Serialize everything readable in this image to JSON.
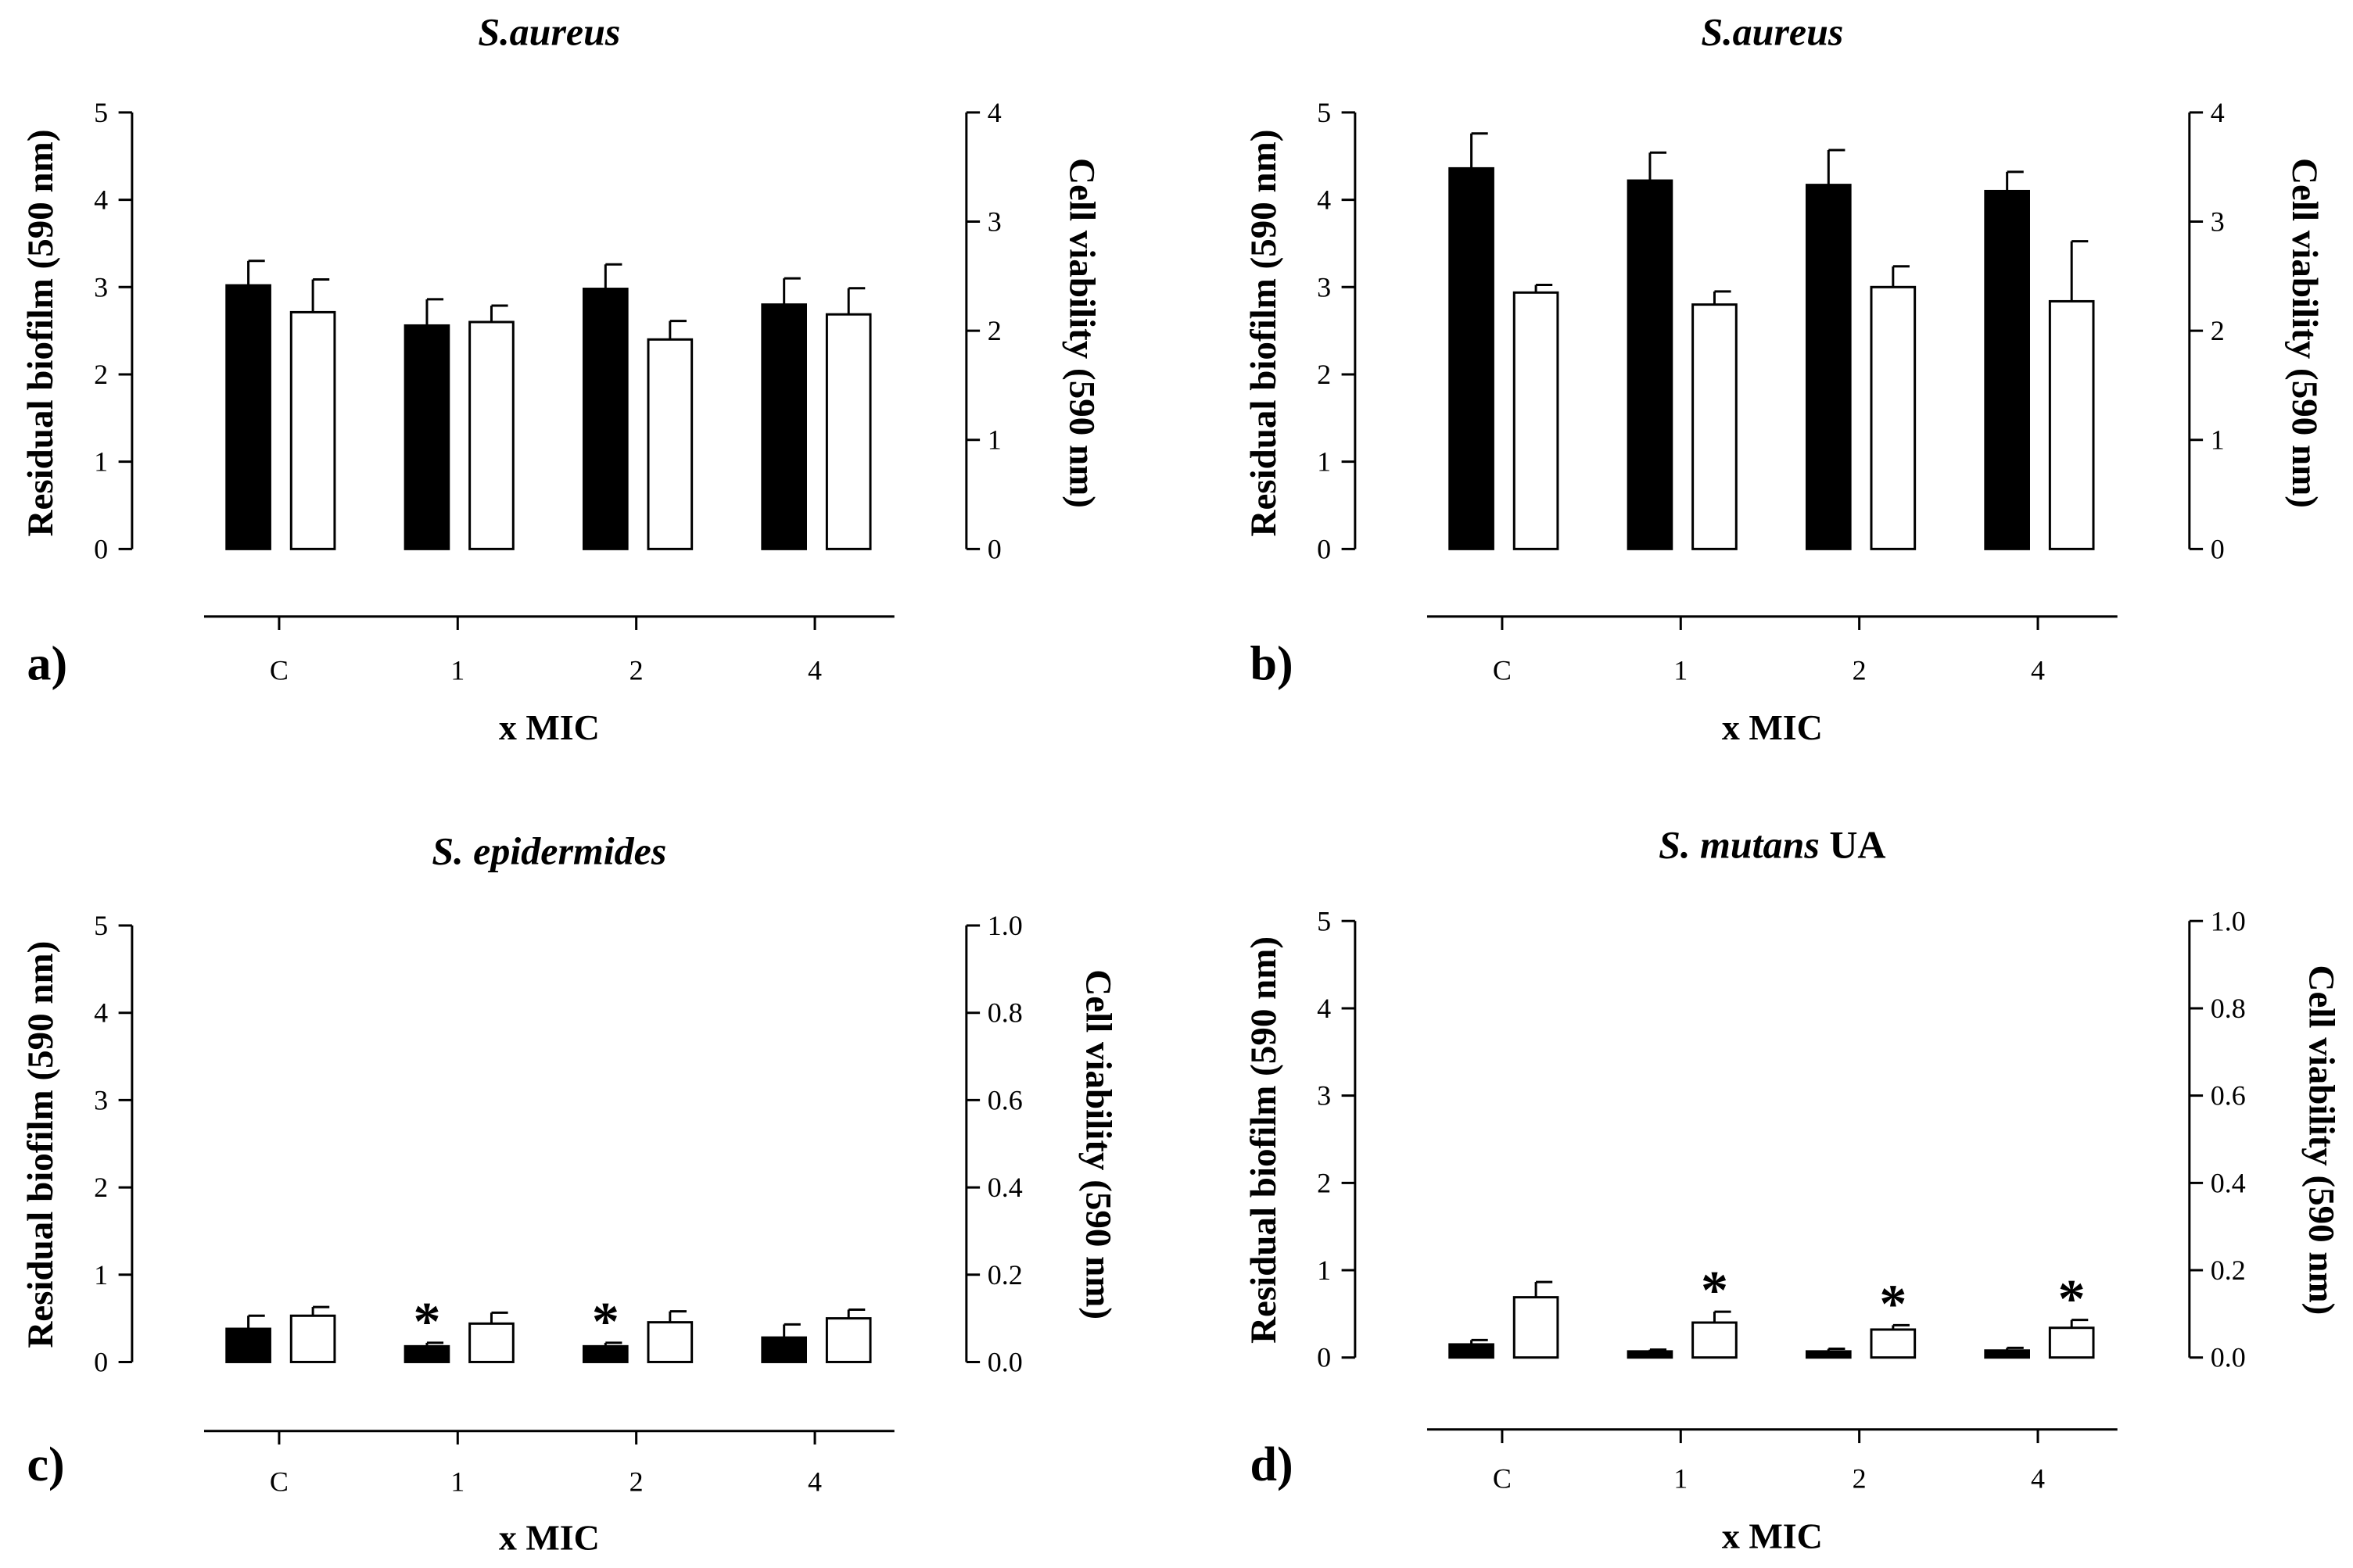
{
  "chart_data": [
    {
      "panel_label": "a)",
      "type": "bar",
      "title": "S.aureus",
      "title_suffix": "",
      "xlabel": "x MIC",
      "ylabel_left": "Residual biofilm (590 nm)",
      "ylabel_right": "Cell viability (590 nm)",
      "categories": [
        "C",
        "1",
        "2",
        "4"
      ],
      "ylim_left": [
        0,
        5
      ],
      "ylim_right": [
        0,
        4
      ],
      "yticks_left": [
        "0",
        "1",
        "2",
        "3",
        "4",
        "5"
      ],
      "yticks_right": [
        "0",
        "1",
        "2",
        "3",
        "4"
      ],
      "series": [
        {
          "name": "Residual biofilm",
          "axis": "left",
          "fill": "#000000",
          "values": [
            3.02,
            2.56,
            2.98,
            2.8
          ],
          "errors": [
            0.28,
            0.3,
            0.28,
            0.3
          ],
          "significant": [
            false,
            false,
            false,
            false
          ]
        },
        {
          "name": "Cell viability",
          "axis": "right",
          "fill": "#ffffff",
          "values": [
            2.17,
            2.08,
            1.92,
            2.15
          ],
          "errors": [
            0.3,
            0.15,
            0.17,
            0.24
          ],
          "significant": [
            false,
            false,
            false,
            false
          ]
        }
      ]
    },
    {
      "panel_label": "b)",
      "type": "bar",
      "title": "S.aureus",
      "title_suffix": "",
      "xlabel": "x MIC",
      "ylabel_left": "Residual biofilm (590 nm)",
      "ylabel_right": "Cell viability (590 nm)",
      "categories": [
        "C",
        "1",
        "2",
        "4"
      ],
      "ylim_left": [
        0,
        5
      ],
      "ylim_right": [
        0,
        4
      ],
      "yticks_left": [
        "0",
        "1",
        "2",
        "3",
        "4",
        "5"
      ],
      "yticks_right": [
        "0",
        "1",
        "2",
        "3",
        "4"
      ],
      "series": [
        {
          "name": "Residual biofilm",
          "axis": "left",
          "fill": "#000000",
          "values": [
            4.36,
            4.22,
            4.17,
            4.1
          ],
          "errors": [
            0.4,
            0.32,
            0.4,
            0.22
          ],
          "significant": [
            false,
            false,
            false,
            false
          ]
        },
        {
          "name": "Cell viability",
          "axis": "right",
          "fill": "#ffffff",
          "values": [
            2.35,
            2.24,
            2.4,
            2.27
          ],
          "errors": [
            0.07,
            0.12,
            0.19,
            0.55
          ],
          "significant": [
            false,
            false,
            false,
            false
          ]
        }
      ]
    },
    {
      "panel_label": "c)",
      "type": "bar",
      "title": "S. epidermides",
      "title_suffix": "",
      "xlabel": "x MIC",
      "ylabel_left": "Residual biofilm (590 nm)",
      "ylabel_right": "Cell viability (590 nm)",
      "categories": [
        "C",
        "1",
        "2",
        "4"
      ],
      "ylim_left": [
        0,
        5
      ],
      "ylim_right": [
        0,
        1.0
      ],
      "yticks_left": [
        "0",
        "1",
        "2",
        "3",
        "4",
        "5"
      ],
      "yticks_right": [
        "0.0",
        "0.2",
        "0.4",
        "0.6",
        "0.8",
        "1.0"
      ],
      "series": [
        {
          "name": "Residual biofilm",
          "axis": "left",
          "fill": "#000000",
          "values": [
            0.38,
            0.18,
            0.18,
            0.28
          ],
          "errors": [
            0.15,
            0.04,
            0.04,
            0.15
          ],
          "significant": [
            false,
            true,
            true,
            false
          ]
        },
        {
          "name": "Cell viability",
          "axis": "right",
          "fill": "#ffffff",
          "values": [
            0.106,
            0.088,
            0.091,
            0.1
          ],
          "errors": [
            0.02,
            0.025,
            0.025,
            0.02
          ],
          "significant": [
            false,
            false,
            false,
            false
          ]
        }
      ]
    },
    {
      "panel_label": "d)",
      "type": "bar",
      "title": "S. mutans",
      "title_suffix": "UA",
      "xlabel": "x MIC",
      "ylabel_left": "Residual biofilm (590 nm)",
      "ylabel_right": "Cell viability (590 nm)",
      "categories": [
        "C",
        "1",
        "2",
        "4"
      ],
      "ylim_left": [
        0,
        5
      ],
      "ylim_right": [
        0,
        1.0
      ],
      "yticks_left": [
        "0",
        "1",
        "2",
        "3",
        "4",
        "5"
      ],
      "yticks_right": [
        "0.0",
        "0.2",
        "0.4",
        "0.6",
        "0.8",
        "1.0"
      ],
      "series": [
        {
          "name": "Residual biofilm",
          "axis": "left",
          "fill": "#000000",
          "values": [
            0.15,
            0.07,
            0.07,
            0.08
          ],
          "errors": [
            0.05,
            0.02,
            0.03,
            0.03
          ],
          "significant": [
            false,
            false,
            false,
            false
          ]
        },
        {
          "name": "Cell viability",
          "axis": "right",
          "fill": "#ffffff",
          "values": [
            0.138,
            0.08,
            0.064,
            0.068
          ],
          "errors": [
            0.035,
            0.025,
            0.01,
            0.018
          ],
          "significant": [
            false,
            true,
            true,
            true
          ]
        }
      ]
    }
  ]
}
